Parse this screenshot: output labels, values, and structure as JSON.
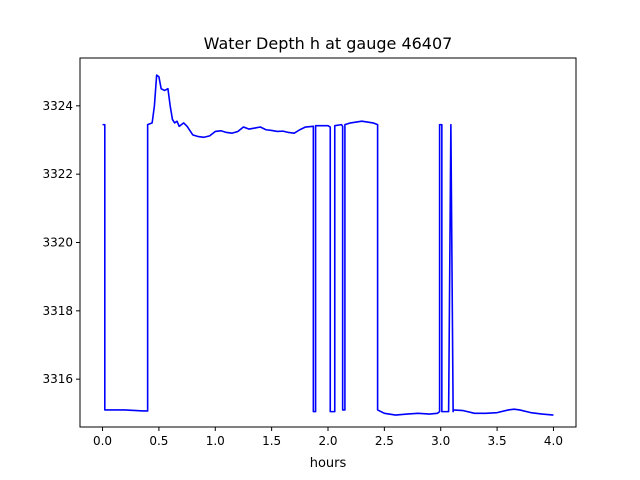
{
  "chart_data": {
    "type": "line",
    "title": "Water Depth h at gauge 46407",
    "xlabel": "hours",
    "ylabel": "",
    "xlim": [
      -0.2,
      4.2
    ],
    "ylim": [
      3314.6,
      3325.4
    ],
    "xticks": [
      0.0,
      0.5,
      1.0,
      1.5,
      2.0,
      2.5,
      3.0,
      3.5,
      4.0
    ],
    "xtick_labels": [
      "0.0",
      "0.5",
      "1.0",
      "1.5",
      "2.0",
      "2.5",
      "3.0",
      "3.5",
      "4.0"
    ],
    "yticks": [
      3316,
      3318,
      3320,
      3322,
      3324
    ],
    "ytick_labels": [
      "3316",
      "3318",
      "3320",
      "3322",
      "3324"
    ],
    "grid": false,
    "series": [
      {
        "color": "#0000ff",
        "x": [
          0.0,
          0.02,
          0.02,
          0.1,
          0.2,
          0.3,
          0.36,
          0.4,
          0.4,
          0.44,
          0.46,
          0.48,
          0.5,
          0.52,
          0.55,
          0.58,
          0.6,
          0.62,
          0.64,
          0.66,
          0.68,
          0.7,
          0.72,
          0.75,
          0.8,
          0.85,
          0.9,
          0.95,
          1.0,
          1.05,
          1.1,
          1.15,
          1.2,
          1.25,
          1.3,
          1.35,
          1.4,
          1.45,
          1.5,
          1.55,
          1.6,
          1.65,
          1.7,
          1.75,
          1.8,
          1.87,
          1.87,
          1.89,
          1.89,
          2.0,
          2.02,
          2.02,
          2.06,
          2.06,
          2.12,
          2.13,
          2.13,
          2.15,
          2.15,
          2.2,
          2.3,
          2.4,
          2.44,
          2.44,
          2.5,
          2.6,
          2.7,
          2.8,
          2.9,
          2.97,
          2.99,
          2.99,
          3.01,
          3.01,
          3.07,
          3.09,
          3.09,
          3.11,
          3.11,
          3.2,
          3.3,
          3.4,
          3.5,
          3.6,
          3.65,
          3.7,
          3.8,
          3.9,
          4.0
        ],
        "y": [
          3323.45,
          3323.45,
          3315.1,
          3315.1,
          3315.1,
          3315.08,
          3315.07,
          3315.07,
          3323.45,
          3323.5,
          3324.0,
          3324.9,
          3324.85,
          3324.5,
          3324.45,
          3324.5,
          3324.0,
          3323.6,
          3323.5,
          3323.55,
          3323.4,
          3323.45,
          3323.5,
          3323.4,
          3323.15,
          3323.1,
          3323.08,
          3323.12,
          3323.25,
          3323.27,
          3323.22,
          3323.2,
          3323.25,
          3323.38,
          3323.32,
          3323.35,
          3323.38,
          3323.3,
          3323.28,
          3323.25,
          3323.26,
          3323.22,
          3323.2,
          3323.3,
          3323.38,
          3323.4,
          3315.05,
          3315.05,
          3323.42,
          3323.42,
          3323.38,
          3315.05,
          3315.05,
          3323.42,
          3323.45,
          3323.4,
          3315.1,
          3315.1,
          3323.45,
          3323.5,
          3323.55,
          3323.5,
          3323.45,
          3315.1,
          3315.0,
          3314.95,
          3314.98,
          3315.0,
          3314.98,
          3315.0,
          3315.05,
          3323.45,
          3323.45,
          3315.05,
          3315.05,
          3323.45,
          3323.45,
          3315.05,
          3315.1,
          3315.08,
          3315.0,
          3315.0,
          3315.02,
          3315.1,
          3315.12,
          3315.1,
          3315.02,
          3314.98,
          3314.95
        ]
      }
    ]
  }
}
